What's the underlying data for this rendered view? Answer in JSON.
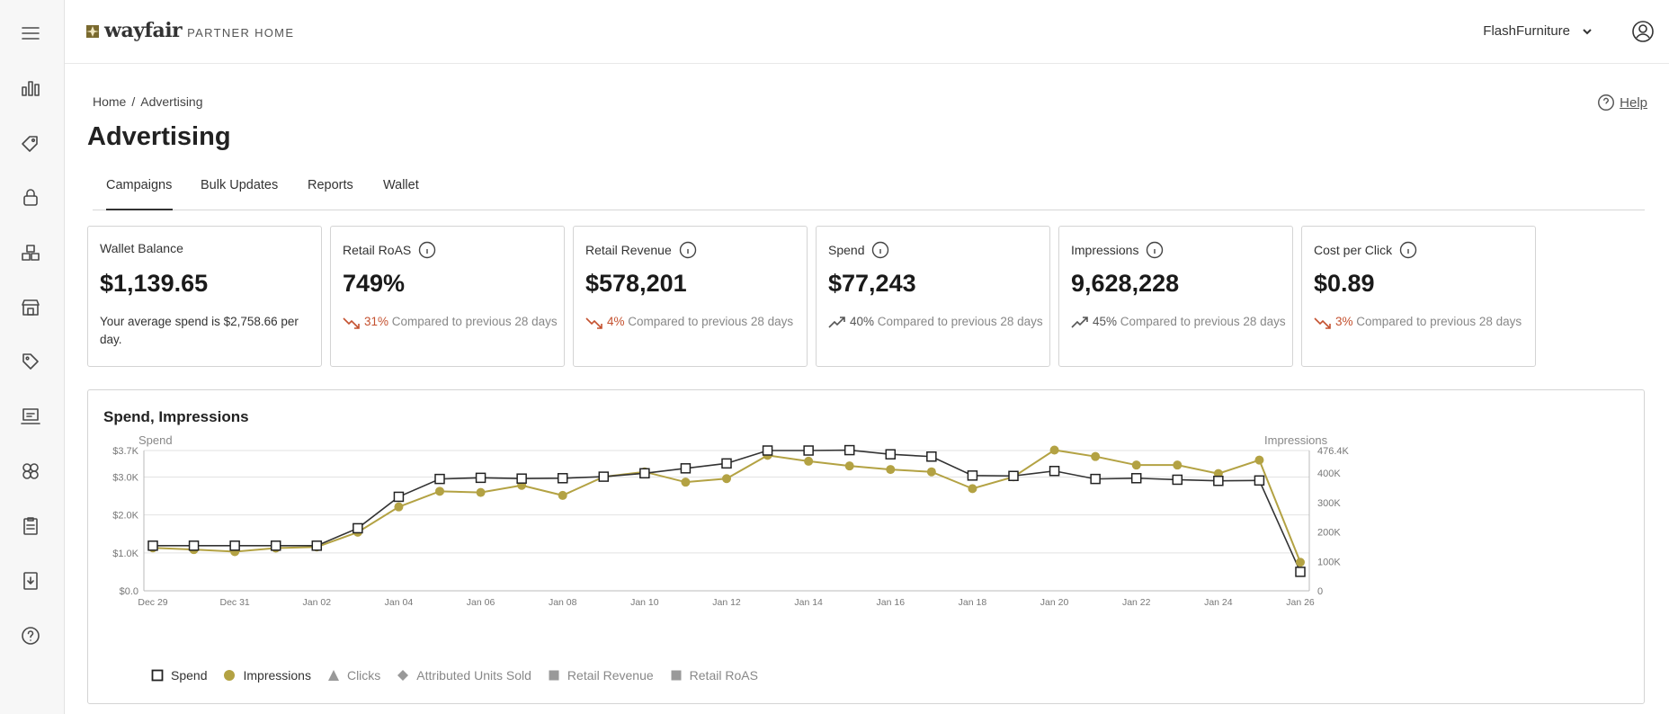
{
  "app": {
    "brand": "wayfair",
    "brand_sub": "PARTNER HOME",
    "account_name": "FlashFurniture"
  },
  "rail": {
    "icons": [
      "menu-icon",
      "bar-chart-icon",
      "tag-icon",
      "lock-bag-icon",
      "boxes-icon",
      "store-icon",
      "price-tag-icon",
      "laptop-icon",
      "grid-circles-icon",
      "clipboard-icon",
      "download-doc-icon",
      "help-circle-icon"
    ]
  },
  "page": {
    "breadcrumb": {
      "home": "Home",
      "sep": "/",
      "current": "Advertising"
    },
    "title": "Advertising",
    "help": "Help"
  },
  "tabs": [
    "Campaigns",
    "Bulk Updates",
    "Reports",
    "Wallet"
  ],
  "cards": [
    {
      "label": "Wallet Balance",
      "value": "$1,139.65",
      "note": "Your average spend is $2,758.66 per day."
    },
    {
      "label": "Retail RoAS",
      "value": "749%",
      "pct": "31%",
      "direction": "down",
      "compare": "Compared to previous 28 days"
    },
    {
      "label": "Retail Revenue",
      "value": "$578,201",
      "pct": "4%",
      "direction": "down",
      "compare": "Compared to previous 28 days"
    },
    {
      "label": "Spend",
      "value": "$77,243",
      "pct": "40%",
      "direction": "up",
      "compare": "Compared to previous 28 days"
    },
    {
      "label": "Impressions",
      "value": "9,628,228",
      "pct": "45%",
      "direction": "up",
      "compare": "Compared to previous 28 days"
    },
    {
      "label": "Cost per Click",
      "value": "$0.89",
      "pct": "3%",
      "direction": "down",
      "compare": "Compared to previous 28 days"
    }
  ],
  "colors": {
    "down": "#c4512f",
    "up": "#555555",
    "spend_line": "#333333",
    "impressions_line": "#b3a243"
  },
  "chart_data": {
    "type": "line",
    "title": "Spend, Impressions",
    "y_left_label": "Spend",
    "y_right_label": "Impressions",
    "y_left_ticks": [
      "$0.0",
      "$1.0K",
      "$2.0K",
      "$3.0K",
      "$3.7K"
    ],
    "y_left_tick_values": [
      0,
      1000,
      2000,
      3000,
      3700
    ],
    "y_right_ticks": [
      "0",
      "100K",
      "200K",
      "300K",
      "400K",
      "476.4K"
    ],
    "y_right_tick_values": [
      0,
      100000,
      200000,
      300000,
      400000,
      476400
    ],
    "ylim_left": [
      0,
      3700
    ],
    "ylim_right": [
      0,
      476400
    ],
    "x_labels": [
      "Dec 29",
      "Dec 31",
      "Jan 02",
      "Jan 04",
      "Jan 06",
      "Jan 08",
      "Jan 10",
      "Jan 12",
      "Jan 14",
      "Jan 16",
      "Jan 18",
      "Jan 20",
      "Jan 22",
      "Jan 24",
      "Jan 26"
    ],
    "x": [
      "Dec 29",
      "Dec 30",
      "Dec 31",
      "Jan 01",
      "Jan 02",
      "Jan 03",
      "Jan 04",
      "Jan 05",
      "Jan 06",
      "Jan 07",
      "Jan 08",
      "Jan 09",
      "Jan 10",
      "Jan 11",
      "Jan 12",
      "Jan 13",
      "Jan 14",
      "Jan 15",
      "Jan 16",
      "Jan 17",
      "Jan 18",
      "Jan 19",
      "Jan 20",
      "Jan 21",
      "Jan 22",
      "Jan 23",
      "Jan 24",
      "Jan 25",
      "Jan 26"
    ],
    "series": [
      {
        "name": "Spend",
        "axis": "left",
        "marker": "square",
        "values": [
          1190,
          1190,
          1190,
          1190,
          1190,
          1650,
          2480,
          2950,
          2980,
          2960,
          2970,
          3010,
          3100,
          3230,
          3360,
          3700,
          3700,
          3710,
          3600,
          3540,
          3040,
          3030,
          3160,
          2950,
          2970,
          2930,
          2900,
          2910,
          500
        ]
      },
      {
        "name": "Impressions",
        "axis": "right",
        "marker": "circle",
        "values": [
          146000,
          140000,
          133000,
          145000,
          149000,
          199000,
          285000,
          338000,
          334000,
          358000,
          324000,
          387000,
          404000,
          369000,
          381000,
          460000,
          440000,
          424000,
          412000,
          404000,
          347000,
          387000,
          478000,
          456000,
          427000,
          427000,
          398000,
          444000,
          97000
        ]
      }
    ],
    "legend": [
      {
        "name": "Spend",
        "marker": "square",
        "active": true
      },
      {
        "name": "Impressions",
        "marker": "circle",
        "active": true
      },
      {
        "name": "Clicks",
        "marker": "triangle",
        "active": false
      },
      {
        "name": "Attributed Units Sold",
        "marker": "diamond",
        "active": false
      },
      {
        "name": "Retail Revenue",
        "marker": "square-filled",
        "active": false
      },
      {
        "name": "Retail RoAS",
        "marker": "square-filled",
        "active": false
      }
    ],
    "grid": true
  }
}
